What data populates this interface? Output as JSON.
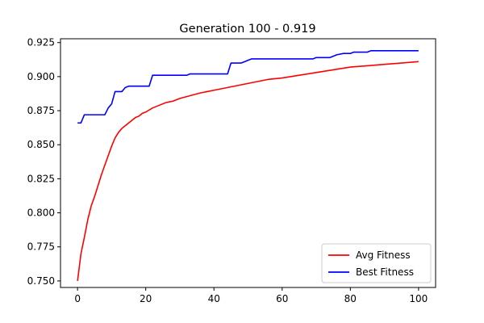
{
  "chart_data": {
    "type": "line",
    "title": "Generation 100 - 0.919",
    "xlabel": "",
    "ylabel": "",
    "xlim": [
      -5,
      105
    ],
    "ylim": [
      0.7452,
      0.9278
    ],
    "xticks": [
      0,
      20,
      40,
      60,
      80,
      100
    ],
    "yticks": [
      0.75,
      0.775,
      0.8,
      0.825,
      0.85,
      0.875,
      0.9,
      0.925
    ],
    "ytick_labels": [
      "0.750",
      "0.775",
      "0.800",
      "0.825",
      "0.850",
      "0.875",
      "0.900",
      "0.925"
    ],
    "xtick_labels": [
      "0",
      "20",
      "40",
      "60",
      "80",
      "100"
    ],
    "grid": false,
    "legend_position": "lower-right",
    "series": [
      {
        "name": "Avg Fitness",
        "color": "#ff0000",
        "points": [
          [
            0,
            0.75
          ],
          [
            1,
            0.77
          ],
          [
            2,
            0.782
          ],
          [
            3,
            0.795
          ],
          [
            4,
            0.805
          ],
          [
            5,
            0.812
          ],
          [
            6,
            0.82
          ],
          [
            7,
            0.828
          ],
          [
            8,
            0.835
          ],
          [
            9,
            0.842
          ],
          [
            10,
            0.849
          ],
          [
            11,
            0.855
          ],
          [
            12,
            0.859
          ],
          [
            13,
            0.862
          ],
          [
            14,
            0.864
          ],
          [
            15,
            0.866
          ],
          [
            16,
            0.868
          ],
          [
            17,
            0.87
          ],
          [
            18,
            0.871
          ],
          [
            19,
            0.873
          ],
          [
            20,
            0.874
          ],
          [
            22,
            0.877
          ],
          [
            24,
            0.879
          ],
          [
            26,
            0.881
          ],
          [
            28,
            0.882
          ],
          [
            30,
            0.884
          ],
          [
            33,
            0.886
          ],
          [
            36,
            0.888
          ],
          [
            40,
            0.89
          ],
          [
            44,
            0.892
          ],
          [
            48,
            0.894
          ],
          [
            52,
            0.896
          ],
          [
            56,
            0.898
          ],
          [
            60,
            0.899
          ],
          [
            65,
            0.901
          ],
          [
            70,
            0.903
          ],
          [
            75,
            0.905
          ],
          [
            80,
            0.907
          ],
          [
            85,
            0.908
          ],
          [
            90,
            0.909
          ],
          [
            95,
            0.91
          ],
          [
            100,
            0.911
          ]
        ]
      },
      {
        "name": "Best Fitness",
        "color": "#0000ff",
        "points": [
          [
            0,
            0.866
          ],
          [
            1,
            0.866
          ],
          [
            2,
            0.872
          ],
          [
            3,
            0.872
          ],
          [
            8,
            0.872
          ],
          [
            9,
            0.877
          ],
          [
            10,
            0.88
          ],
          [
            11,
            0.889
          ],
          [
            13,
            0.889
          ],
          [
            14,
            0.892
          ],
          [
            15,
            0.893
          ],
          [
            21,
            0.893
          ],
          [
            22,
            0.901
          ],
          [
            30,
            0.901
          ],
          [
            32,
            0.901
          ],
          [
            33,
            0.902
          ],
          [
            44,
            0.902
          ],
          [
            45,
            0.91
          ],
          [
            48,
            0.91
          ],
          [
            49,
            0.911
          ],
          [
            50,
            0.912
          ],
          [
            51,
            0.913
          ],
          [
            57,
            0.913
          ],
          [
            58,
            0.913
          ],
          [
            69,
            0.913
          ],
          [
            70,
            0.914
          ],
          [
            74,
            0.914
          ],
          [
            75,
            0.915
          ],
          [
            76,
            0.916
          ],
          [
            78,
            0.917
          ],
          [
            80,
            0.917
          ],
          [
            81,
            0.918
          ],
          [
            85,
            0.918
          ],
          [
            86,
            0.919
          ],
          [
            100,
            0.919
          ]
        ]
      }
    ]
  }
}
